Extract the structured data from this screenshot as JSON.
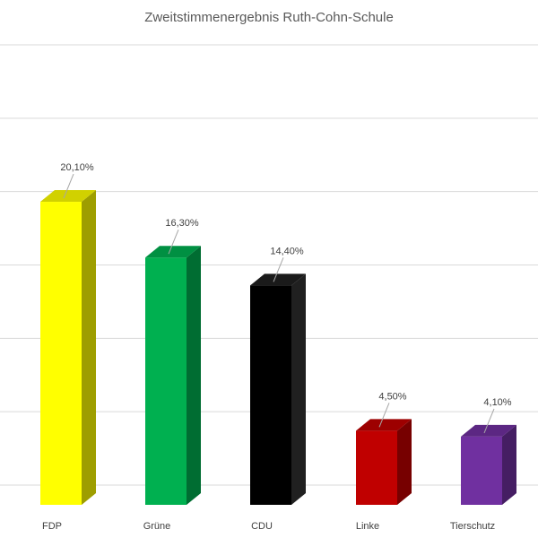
{
  "chart_data": {
    "type": "bar",
    "title": "Zweitstimmenergebnis Ruth-Cohn-Schule",
    "xlabel": "",
    "ylabel": "",
    "categories": [
      "FDP",
      "Grüne",
      "CDU",
      "Linke",
      "Tierschutz"
    ],
    "values": [
      20.1,
      16.3,
      14.4,
      4.5,
      4.1
    ],
    "data_labels": [
      "20,10%",
      "16,30%",
      "14,40%",
      "4,50%",
      "4,10%"
    ],
    "ylim": [
      0,
      30
    ],
    "y_unit": "%",
    "grid": true,
    "legend": "none",
    "bar_style": "3d-column",
    "colors": [
      "#ffff00",
      "#00b050",
      "#000000",
      "#c00000",
      "#7030a0"
    ]
  }
}
